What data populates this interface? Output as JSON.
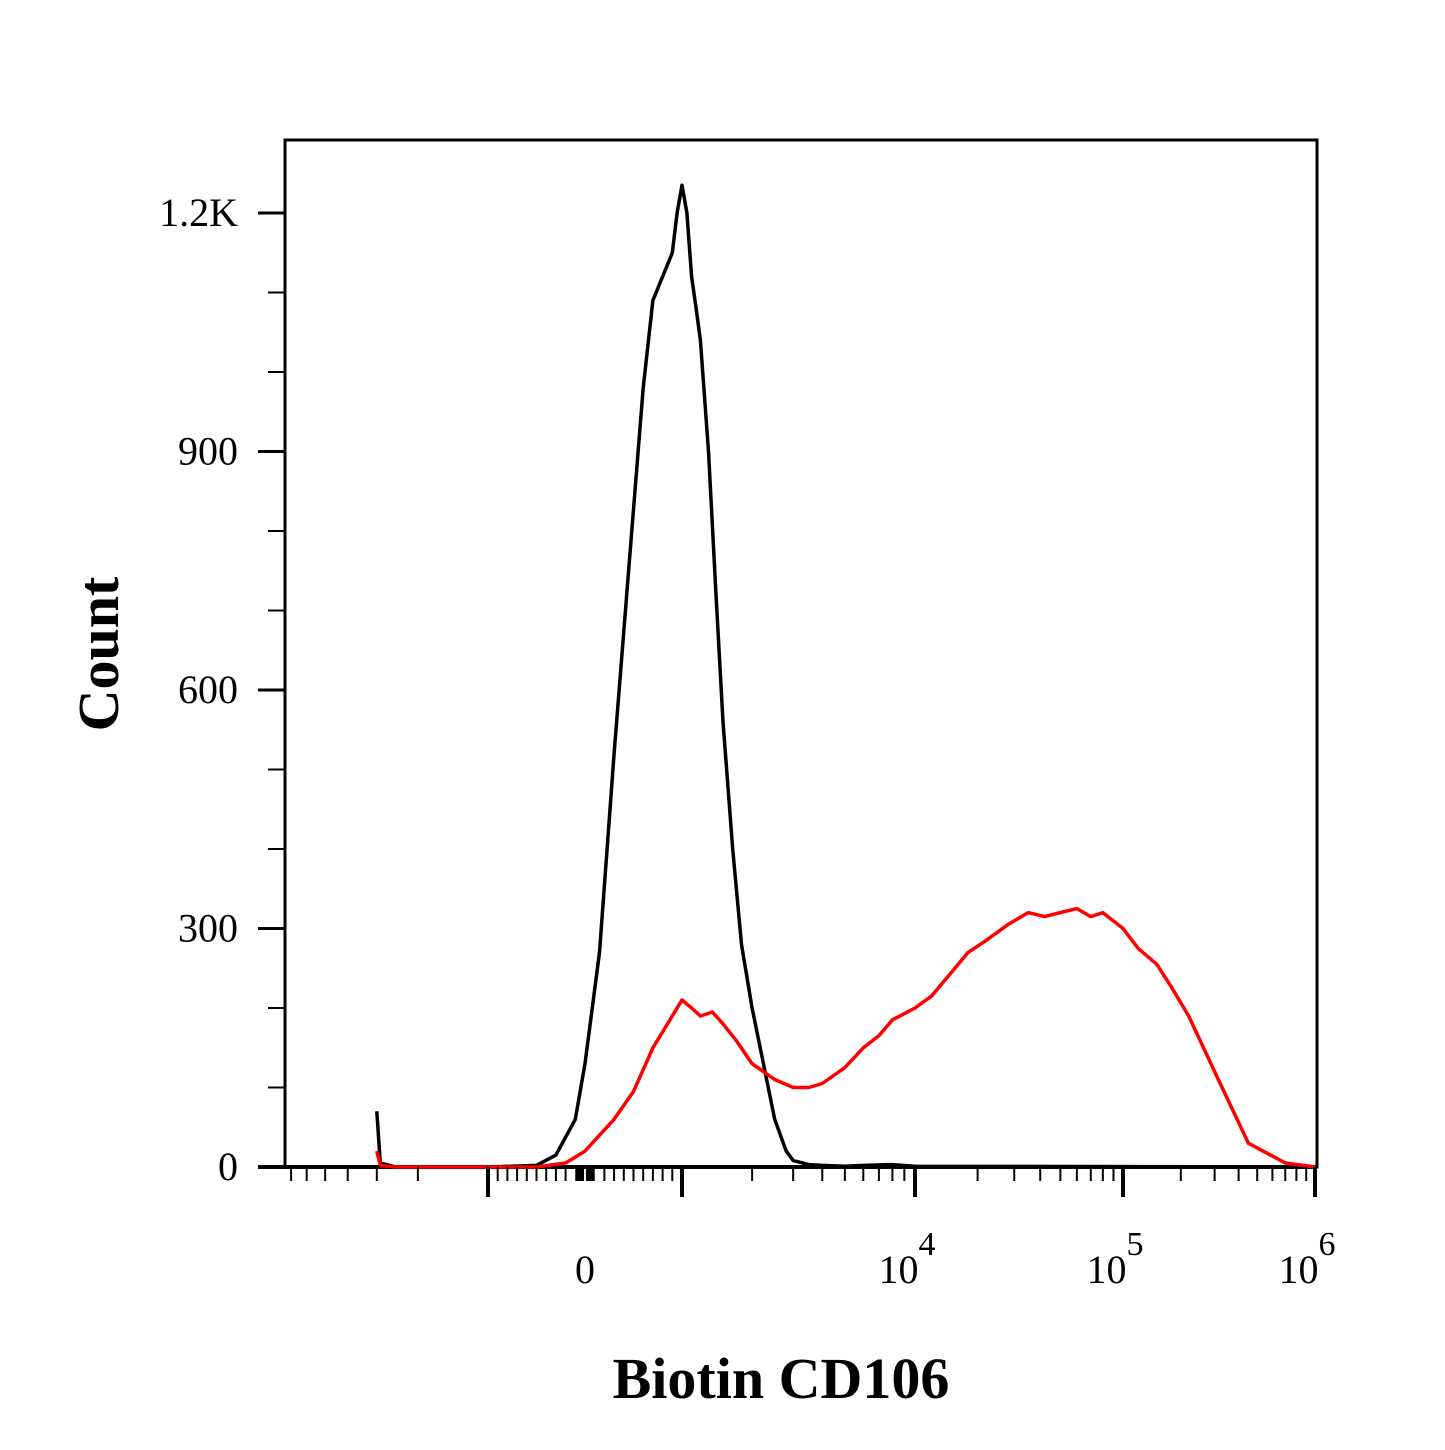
{
  "chart_data": {
    "type": "line",
    "title": "",
    "xlabel": "Biotin CD106",
    "ylabel": "Count",
    "x_scale": "biexponential",
    "xlim": [
      -3000,
      1000000
    ],
    "ylim": [
      0,
      1290
    ],
    "grid": false,
    "legend": "none",
    "y_ticks": [
      {
        "value": 0,
        "label": "0"
      },
      {
        "value": 300,
        "label": "300"
      },
      {
        "value": 600,
        "label": "600"
      },
      {
        "value": 900,
        "label": "900"
      },
      {
        "value": 1200,
        "label": "1.2K"
      }
    ],
    "x_ticks": [
      {
        "value": 0,
        "base": "0",
        "exp": ""
      },
      {
        "value": 10000,
        "base": "10",
        "exp": "4"
      },
      {
        "value": 100000,
        "base": "10",
        "exp": "5"
      },
      {
        "value": 1000000,
        "base": "10",
        "exp": "6"
      }
    ],
    "series": [
      {
        "color": "#000000",
        "x": [
          -3000,
          -2900,
          -2500,
          -2000,
          -1500,
          -1000,
          -500,
          -300,
          -100,
          0,
          150,
          300,
          450,
          600,
          700,
          800,
          900,
          950,
          1000,
          1050,
          1100,
          1150,
          1200,
          1300,
          1400,
          1500,
          1650,
          1800,
          2000,
          2200,
          2500,
          2800,
          3000,
          3500,
          4000,
          5000,
          6000,
          8000,
          10000,
          1000000
        ],
        "values": [
          70,
          5,
          0,
          0,
          0,
          0,
          2,
          15,
          60,
          130,
          270,
          520,
          750,
          980,
          1090,
          1120,
          1150,
          1200,
          1235,
          1200,
          1120,
          1080,
          1040,
          900,
          720,
          560,
          400,
          280,
          200,
          140,
          60,
          20,
          8,
          3,
          2,
          1,
          2,
          3,
          1,
          0
        ]
      },
      {
        "color": "#ff0000",
        "x": [
          -3000,
          -2900,
          -2500,
          -2000,
          -1500,
          -1000,
          -500,
          -200,
          0,
          150,
          300,
          500,
          700,
          850,
          1000,
          1100,
          1200,
          1350,
          1500,
          1700,
          2000,
          2500,
          3000,
          3500,
          4000,
          5000,
          6000,
          7000,
          8000,
          10000,
          12000,
          15000,
          18000,
          22000,
          28000,
          35000,
          42000,
          50000,
          60000,
          70000,
          80000,
          100000,
          120000,
          150000,
          180000,
          220000,
          300000,
          450000,
          700000,
          1000000
        ],
        "values": [
          20,
          2,
          0,
          0,
          0,
          0,
          0,
          5,
          20,
          40,
          60,
          95,
          150,
          180,
          210,
          200,
          190,
          195,
          180,
          160,
          130,
          110,
          100,
          100,
          105,
          125,
          150,
          165,
          185,
          200,
          215,
          245,
          270,
          285,
          305,
          320,
          315,
          320,
          325,
          315,
          320,
          300,
          275,
          255,
          225,
          190,
          120,
          30,
          5,
          0
        ]
      }
    ]
  }
}
